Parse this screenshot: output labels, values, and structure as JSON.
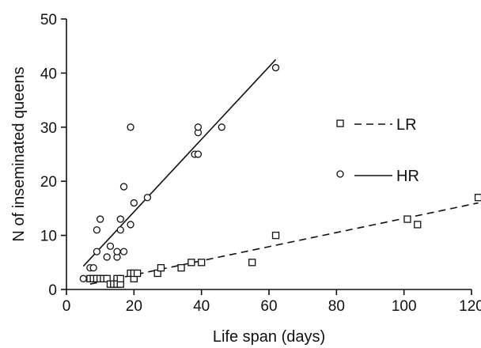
{
  "chart_data": {
    "type": "scatter",
    "xlabel": "Life span (days)",
    "ylabel": "N of inseminated queens",
    "xlim": [
      0,
      120
    ],
    "ylim": [
      0,
      50
    ],
    "xticks": [
      0,
      20,
      40,
      60,
      80,
      100,
      120
    ],
    "yticks": [
      0,
      10,
      20,
      30,
      40,
      50
    ],
    "grid": false,
    "legend_position": "right",
    "series": [
      {
        "name": "LR",
        "marker": "square",
        "line": "dashed",
        "fit": {
          "x": [
            7,
            122
          ],
          "y": [
            1,
            16
          ]
        },
        "points": [
          {
            "x": 7,
            "y": 2
          },
          {
            "x": 8,
            "y": 2
          },
          {
            "x": 9,
            "y": 2
          },
          {
            "x": 10,
            "y": 2
          },
          {
            "x": 11,
            "y": 2
          },
          {
            "x": 12,
            "y": 2
          },
          {
            "x": 13,
            "y": 1
          },
          {
            "x": 14,
            "y": 1
          },
          {
            "x": 15,
            "y": 2
          },
          {
            "x": 15,
            "y": 1
          },
          {
            "x": 16,
            "y": 1
          },
          {
            "x": 16,
            "y": 2
          },
          {
            "x": 19,
            "y": 3
          },
          {
            "x": 20,
            "y": 2
          },
          {
            "x": 20,
            "y": 3
          },
          {
            "x": 21,
            "y": 3
          },
          {
            "x": 27,
            "y": 3
          },
          {
            "x": 28,
            "y": 4
          },
          {
            "x": 34,
            "y": 4
          },
          {
            "x": 37,
            "y": 5
          },
          {
            "x": 40,
            "y": 5
          },
          {
            "x": 55,
            "y": 5
          },
          {
            "x": 62,
            "y": 10
          },
          {
            "x": 101,
            "y": 13
          },
          {
            "x": 104,
            "y": 12
          },
          {
            "x": 122,
            "y": 17
          }
        ]
      },
      {
        "name": "HR",
        "marker": "circle",
        "line": "solid",
        "fit": {
          "x": [
            5,
            62
          ],
          "y": [
            4.3,
            42.5
          ]
        },
        "points": [
          {
            "x": 5,
            "y": 2
          },
          {
            "x": 7,
            "y": 4
          },
          {
            "x": 8,
            "y": 4
          },
          {
            "x": 9,
            "y": 7
          },
          {
            "x": 9,
            "y": 11
          },
          {
            "x": 10,
            "y": 13
          },
          {
            "x": 12,
            "y": 6
          },
          {
            "x": 13,
            "y": 8
          },
          {
            "x": 15,
            "y": 6
          },
          {
            "x": 15,
            "y": 7
          },
          {
            "x": 16,
            "y": 11
          },
          {
            "x": 16,
            "y": 13
          },
          {
            "x": 17,
            "y": 7
          },
          {
            "x": 17,
            "y": 19
          },
          {
            "x": 19,
            "y": 12
          },
          {
            "x": 19,
            "y": 30
          },
          {
            "x": 20,
            "y": 16
          },
          {
            "x": 24,
            "y": 17
          },
          {
            "x": 38,
            "y": 25
          },
          {
            "x": 39,
            "y": 25
          },
          {
            "x": 39,
            "y": 29
          },
          {
            "x": 39,
            "y": 30
          },
          {
            "x": 46,
            "y": 30
          },
          {
            "x": 62,
            "y": 41
          }
        ]
      }
    ]
  }
}
